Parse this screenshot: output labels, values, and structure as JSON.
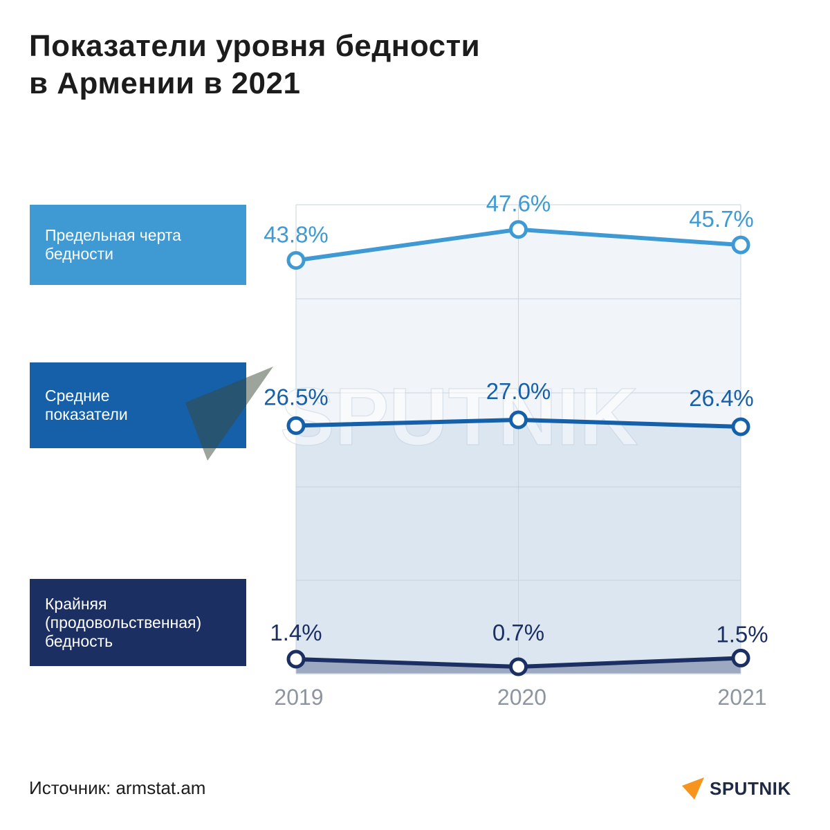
{
  "title_lines": [
    "Показатели уровня бедности",
    "в Армении в 2021"
  ],
  "source": "Источник: armstat.am",
  "brand": "SPUTNIK",
  "watermark": "SPUTNIK",
  "colors": {
    "series_0": "#3f9ad4",
    "series_1": "#1560a8",
    "series_2": "#1b2f63",
    "grid": "#c9d3de",
    "tick": "#8f959e",
    "brand_orange": "#f7941d"
  },
  "chart_data": {
    "type": "line",
    "x": [
      "2019",
      "2020",
      "2021"
    ],
    "ylim": [
      0,
      50
    ],
    "grid": true,
    "legend_position": "left",
    "series": [
      {
        "name": "Предельная черта бедности",
        "name_lines": [
          "Предельная черта",
          "бедности"
        ],
        "values": [
          43.8,
          47.6,
          45.7
        ],
        "labels": [
          "43.8%",
          "47.6%",
          "45.7%"
        ]
      },
      {
        "name": "Средние показатели",
        "name_lines": [
          "Средние",
          "показатели"
        ],
        "values": [
          26.5,
          27.0,
          26.4
        ],
        "labels": [
          "26.5%",
          "27.0%",
          "26.4%"
        ]
      },
      {
        "name": "Крайняя (продовольственная) бедность",
        "name_lines": [
          "Крайняя",
          "(продовольственная)",
          "бедность"
        ],
        "values": [
          1.4,
          0.7,
          1.5
        ],
        "labels": [
          "1.4%",
          "0.7%",
          "1.5%"
        ]
      }
    ]
  }
}
